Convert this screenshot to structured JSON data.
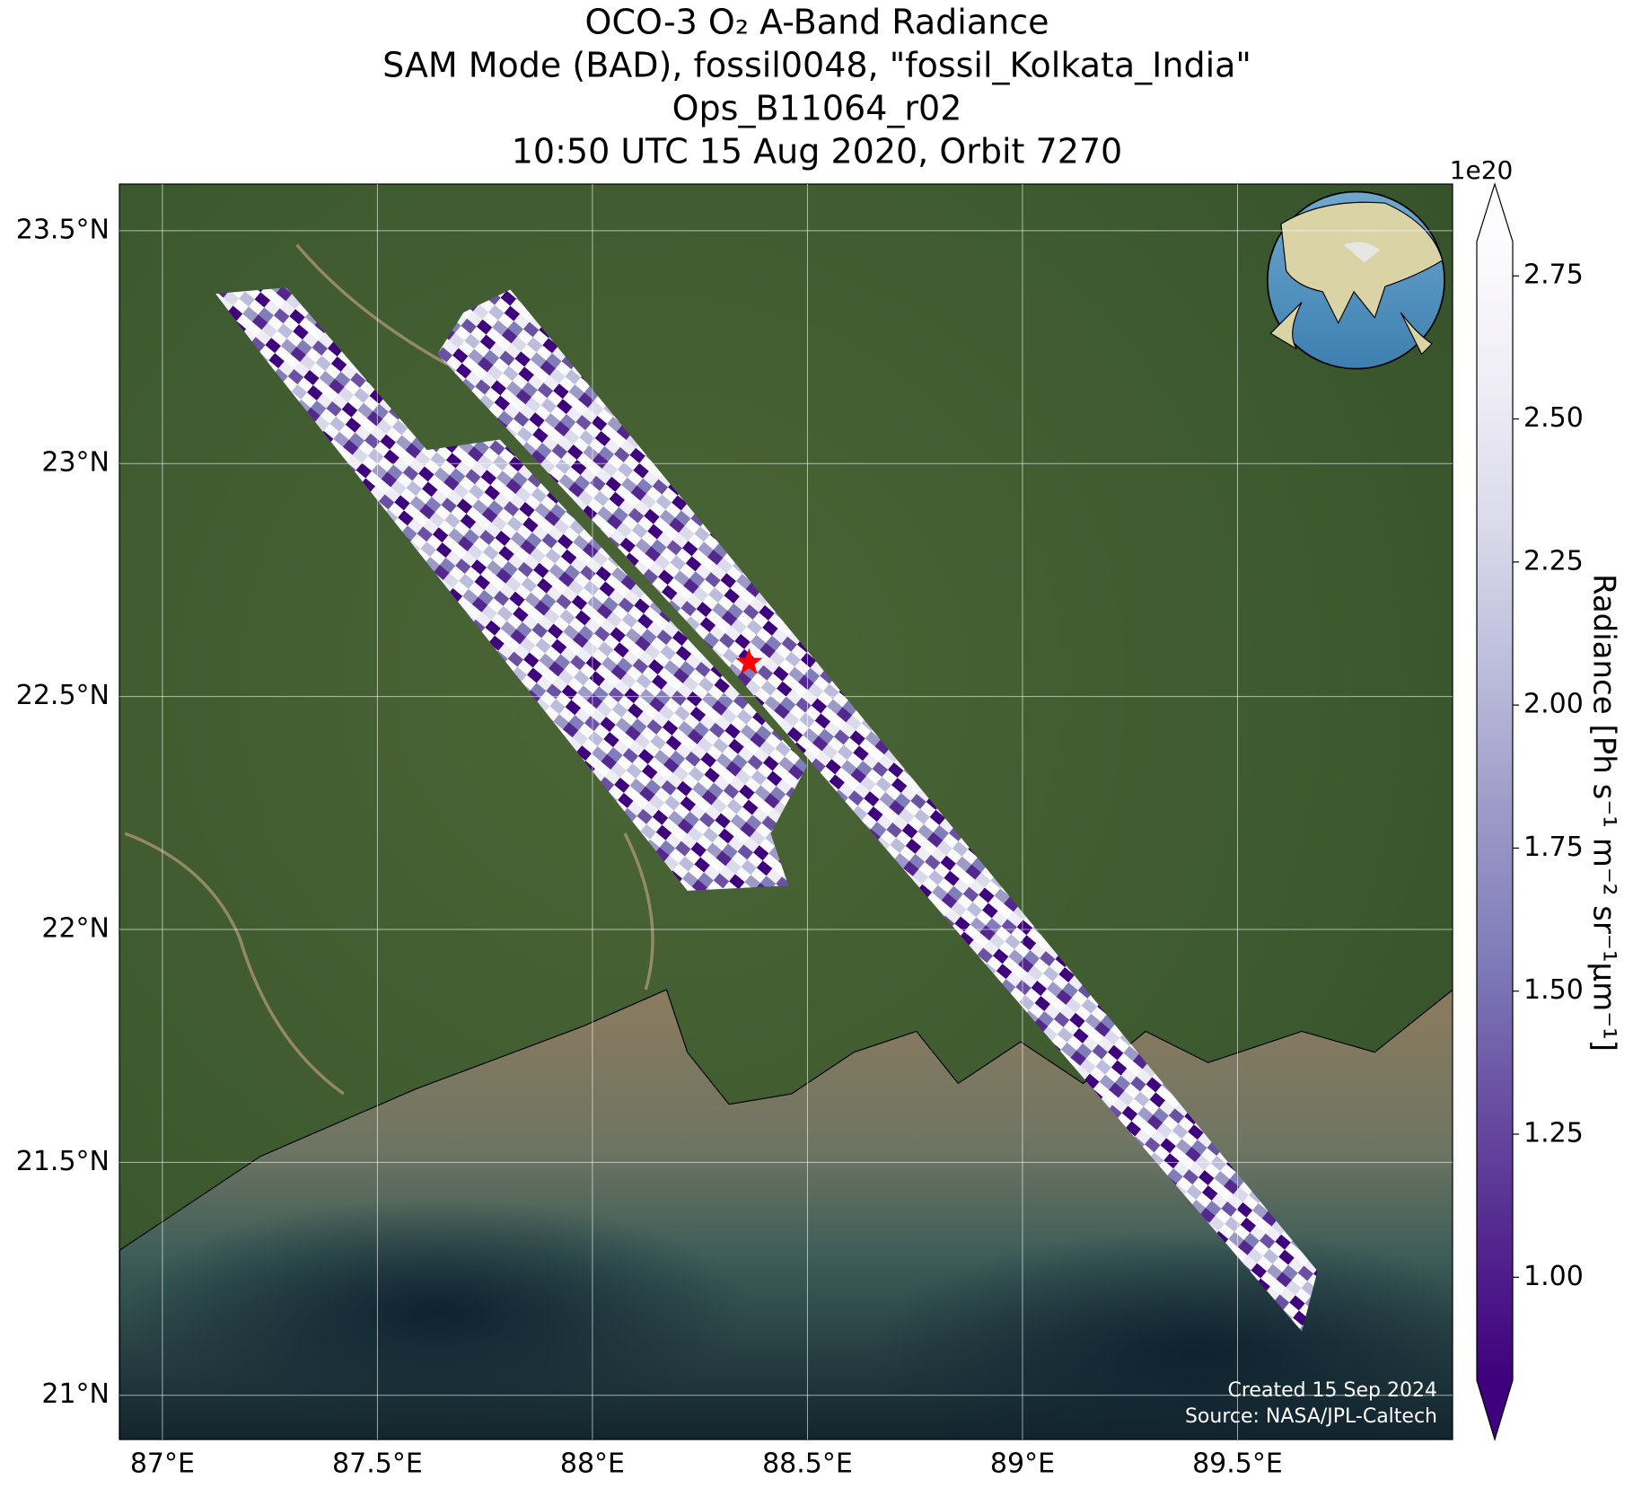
{
  "chart_data": {
    "type": "map",
    "title": [
      "OCO-3 O₂ A-Band Radiance",
      "SAM Mode (BAD), fossil0048, \"fossil_Kolkata_India\"",
      "Ops_B11064_r02",
      "10:50 UTC 15 Aug 2020, Orbit 7270"
    ],
    "xlim": [
      86.9,
      90.0
    ],
    "ylim": [
      20.905,
      23.6
    ],
    "xticks": [
      {
        "value": 87,
        "label": "87°E"
      },
      {
        "value": 87.5,
        "label": "87.5°E"
      },
      {
        "value": 88,
        "label": "88°E"
      },
      {
        "value": 88.5,
        "label": "88.5°E"
      },
      {
        "value": 89,
        "label": "89°E"
      },
      {
        "value": 89.5,
        "label": "89.5°E"
      }
    ],
    "yticks": [
      {
        "value": 21,
        "label": "21°N"
      },
      {
        "value": 21.5,
        "label": "21.5°N"
      },
      {
        "value": 22,
        "label": "22°N"
      },
      {
        "value": 22.5,
        "label": "22.5°N"
      },
      {
        "value": 23,
        "label": "23°N"
      },
      {
        "value": 23.5,
        "label": "23.5°N"
      }
    ],
    "grid": true,
    "colorbar": {
      "label": "Radiance [Ph s⁻¹ m⁻² sr⁻¹μm⁻¹]",
      "offset_label": "1e20",
      "lim": [
        0.82,
        2.81
      ],
      "ticks": [
        {
          "value": 1,
          "label": "1.00"
        },
        {
          "value": 1.25,
          "label": "1.25"
        },
        {
          "value": 1.5,
          "label": "1.50"
        },
        {
          "value": 1.75,
          "label": "1.75"
        },
        {
          "value": 2,
          "label": "2.00"
        },
        {
          "value": 2.25,
          "label": "2.25"
        },
        {
          "value": 2.5,
          "label": "2.50"
        },
        {
          "value": 2.75,
          "label": "2.75"
        }
      ],
      "colors": [
        "#3f007d",
        "#54278f",
        "#6a51a3",
        "#807dba",
        "#9e9ac8",
        "#bcbddc",
        "#dadaeb",
        "#efedf5",
        "#fcfbfd"
      ]
    },
    "marker": {
      "lon": 88.364,
      "lat": 22.573,
      "color": "#ff0000"
    },
    "annotations": [
      "Created 15 Sep 2024",
      "Source: NASA/JPL-Caltech"
    ]
  }
}
